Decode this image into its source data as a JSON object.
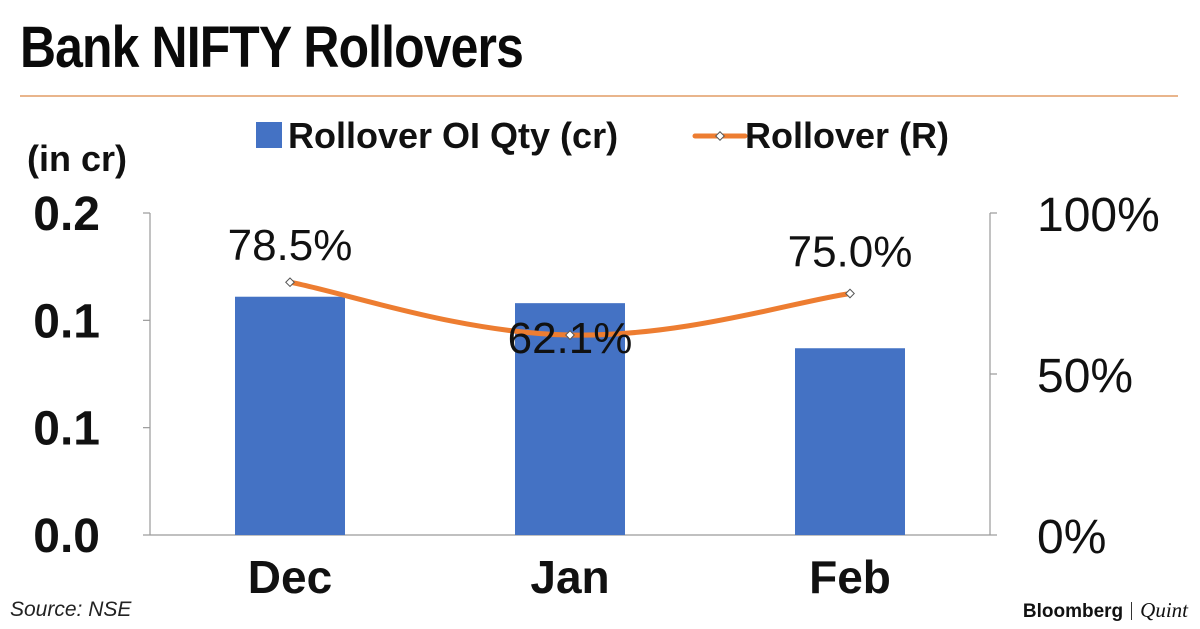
{
  "header": {
    "title": "Bank NIFTY Rollovers"
  },
  "footer": {
    "source": "Source: NSE",
    "brand_left": "Bloomberg",
    "brand_right": "Quint"
  },
  "colors": {
    "bar": "#4472c4",
    "line": "#ed7d31",
    "rule": "#e9b58c",
    "axis": "#9a9a9a"
  },
  "chart_data": {
    "type": "bar",
    "categories": [
      "Dec",
      "Jan",
      "Feb"
    ],
    "series": [
      {
        "name": "Rollover OI Qty (cr)",
        "type": "bar",
        "axis": "left",
        "values": [
          0.148,
          0.144,
          0.116
        ]
      },
      {
        "name": "Rollover (R)",
        "type": "line",
        "axis": "right",
        "values": [
          78.5,
          62.1,
          75.0
        ],
        "data_labels": [
          "78.5%",
          "62.1%",
          "75.0%"
        ]
      }
    ],
    "left_axis": {
      "label": "(in cr)",
      "ticks": [
        "0.0",
        "0.1",
        "0.1",
        "0.2"
      ],
      "range": [
        0,
        0.2
      ]
    },
    "right_axis": {
      "ticks": [
        "0%",
        "50%",
        "100%"
      ],
      "range": [
        0,
        100
      ]
    },
    "legend_position": "top",
    "grid": false
  }
}
